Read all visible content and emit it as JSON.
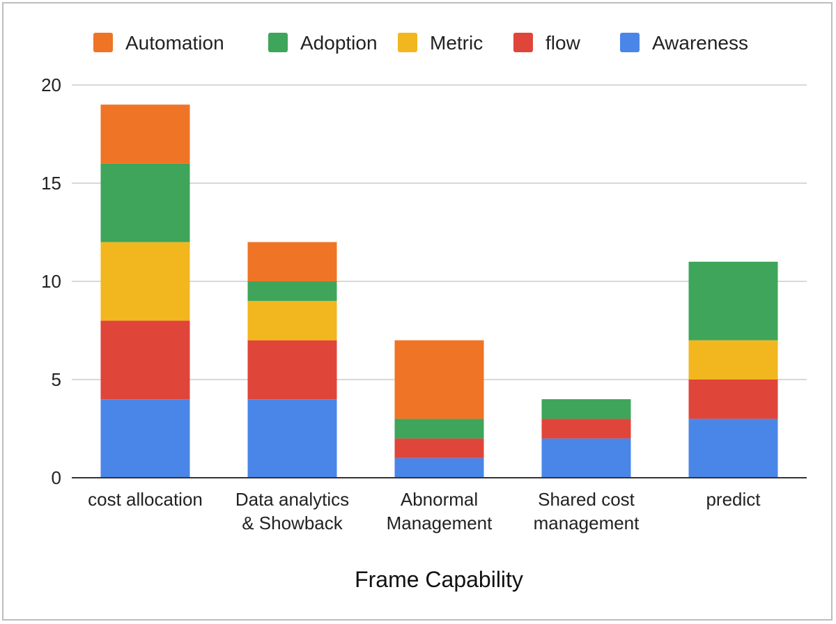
{
  "chart_data": {
    "type": "bar",
    "stacked": true,
    "title": "",
    "xlabel": "Frame Capability",
    "ylabel": "",
    "ylim": [
      0,
      20
    ],
    "yticks": [
      0,
      5,
      10,
      15,
      20
    ],
    "grid": true,
    "legend_position": "top-center",
    "categories": [
      [
        "cost allocation"
      ],
      [
        "Data analytics",
        "& Showback"
      ],
      [
        "Abnormal",
        "Management"
      ],
      [
        "Shared cost",
        "management"
      ],
      [
        "predict"
      ]
    ],
    "series": [
      {
        "name": "Awareness",
        "color": "#4a86e8",
        "values": [
          4,
          4,
          1,
          2,
          3
        ]
      },
      {
        "name": "flow",
        "color": "#e0453a",
        "values": [
          4,
          3,
          1,
          1,
          2
        ]
      },
      {
        "name": "Metric",
        "color": "#f2b71f",
        "values": [
          4,
          2,
          0,
          0,
          2
        ]
      },
      {
        "name": "Adoption",
        "color": "#3ea55a",
        "values": [
          4,
          1,
          1,
          1,
          4
        ]
      },
      {
        "name": "Automation",
        "color": "#ef7425",
        "values": [
          3,
          2,
          4,
          0,
          0
        ]
      }
    ],
    "legend_order": [
      "Automation",
      "Adoption",
      "Metric",
      "flow",
      "Awareness"
    ]
  }
}
